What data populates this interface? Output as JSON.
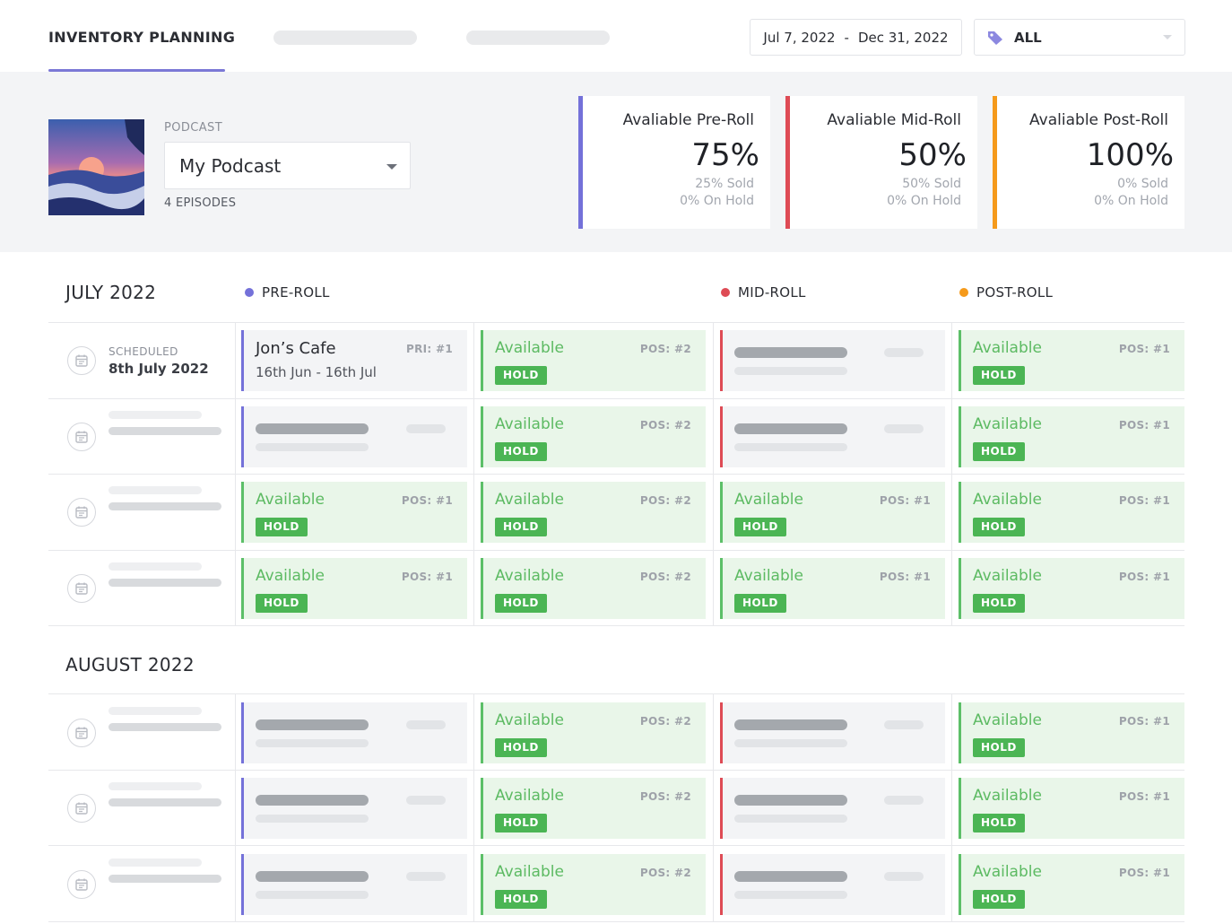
{
  "header": {
    "active_tab": "INVENTORY PLANNING",
    "date_start": "Jul 7, 2022",
    "date_sep": "-",
    "date_end": "Dec 31, 2022",
    "filter_value": "ALL",
    "accent": "#7b78d6"
  },
  "podcast": {
    "label": "PODCAST",
    "selected": "My Podcast",
    "episodes": "4 EPISODES"
  },
  "stats": [
    {
      "title": "Avaliable Pre-Roll",
      "percent": "75%",
      "sold": "25% Sold",
      "hold": "0% On Hold",
      "color": "#7471d9"
    },
    {
      "title": "Avaliable Mid-Roll",
      "percent": "50%",
      "sold": "50% Sold",
      "hold": "0% On Hold",
      "color": "#de4b55"
    },
    {
      "title": "Avaliable Post-Roll",
      "percent": "100%",
      "sold": "0% Sold",
      "hold": "0% On Hold",
      "color": "#f59a1b"
    }
  ],
  "legend": [
    {
      "label": "PRE-ROLL",
      "color": "#7471d9"
    },
    {
      "label": "MID-ROLL",
      "color": "#de4b55"
    },
    {
      "label": "POST-ROLL",
      "color": "#f59a1b"
    }
  ],
  "months": [
    "JULY 2022",
    "AUGUST 2022"
  ],
  "slot_text": {
    "available": "Available",
    "hold": "HOLD",
    "pos1": "POS: #1",
    "pos2": "POS: #2"
  },
  "first_row": {
    "scheduled_label": "SCHEDULED",
    "scheduled_date": "8th July 2022",
    "booking_name": "Jon’s Cafe",
    "booking_priority": "PRI: #1",
    "booking_dates": "16th Jun - 16th Jul"
  }
}
